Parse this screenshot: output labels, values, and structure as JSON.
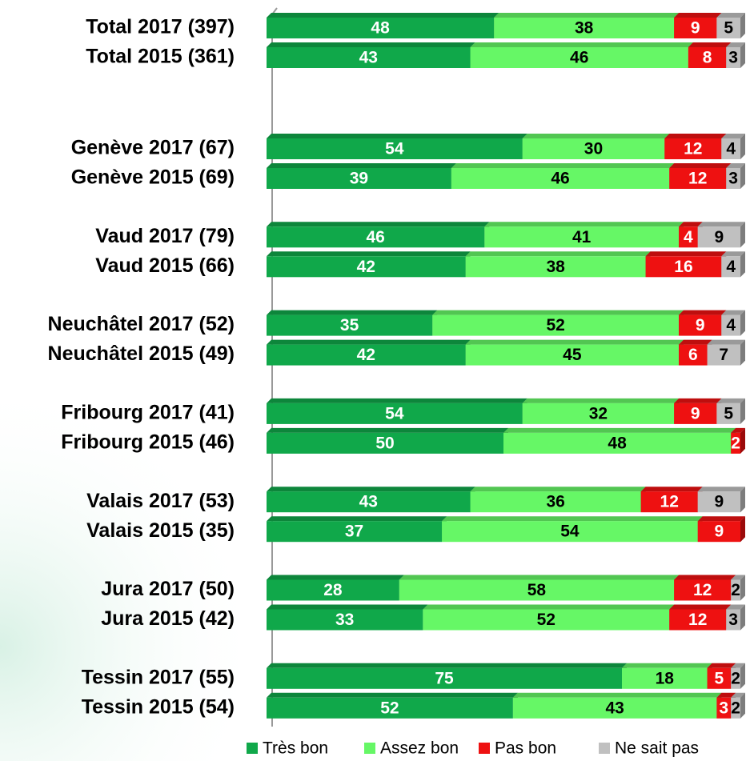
{
  "chart_data": {
    "type": "stacked-bar-horizontal",
    "categories": [
      "Total 2017 (397)",
      "Total 2015 (361)",
      "Genève 2017 (67)",
      "Genève 2015 (69)",
      "Vaud 2017 (79)",
      "Vaud 2015 (66)",
      "Neuchâtel 2017 (52)",
      "Neuchâtel 2015 (49)",
      "Fribourg 2017 (41)",
      "Fribourg 2015 (46)",
      "Valais 2017 (53)",
      "Valais 2015 (35)",
      "Jura 2017 (50)",
      "Jura 2015 (42)",
      "Tessin 2017 (55)",
      "Tessin 2015 (54)"
    ],
    "xlim": [
      0,
      100
    ],
    "series": [
      {
        "name": "Très bon",
        "color": "#10a84a",
        "label_color": "#ffffff",
        "values": [
          48,
          43,
          54,
          39,
          46,
          42,
          35,
          42,
          54,
          50,
          43,
          37,
          28,
          33,
          75,
          52
        ]
      },
      {
        "name": "Assez bon",
        "color": "#66f766",
        "label_color": "#000000",
        "values": [
          38,
          46,
          30,
          46,
          41,
          38,
          52,
          45,
          32,
          48,
          36,
          54,
          58,
          52,
          18,
          43
        ]
      },
      {
        "name": "Pas bon",
        "color": "#ee1111",
        "label_color": "#ffffff",
        "values": [
          9,
          8,
          12,
          12,
          4,
          16,
          9,
          6,
          9,
          2,
          12,
          9,
          12,
          12,
          5,
          3
        ]
      },
      {
        "name": "Ne sait pas",
        "color": "#c0c0c0",
        "label_color": "#000000",
        "values": [
          5,
          3,
          4,
          3,
          9,
          4,
          4,
          7,
          5,
          null,
          9,
          null,
          2,
          3,
          2,
          2
        ]
      }
    ]
  }
}
